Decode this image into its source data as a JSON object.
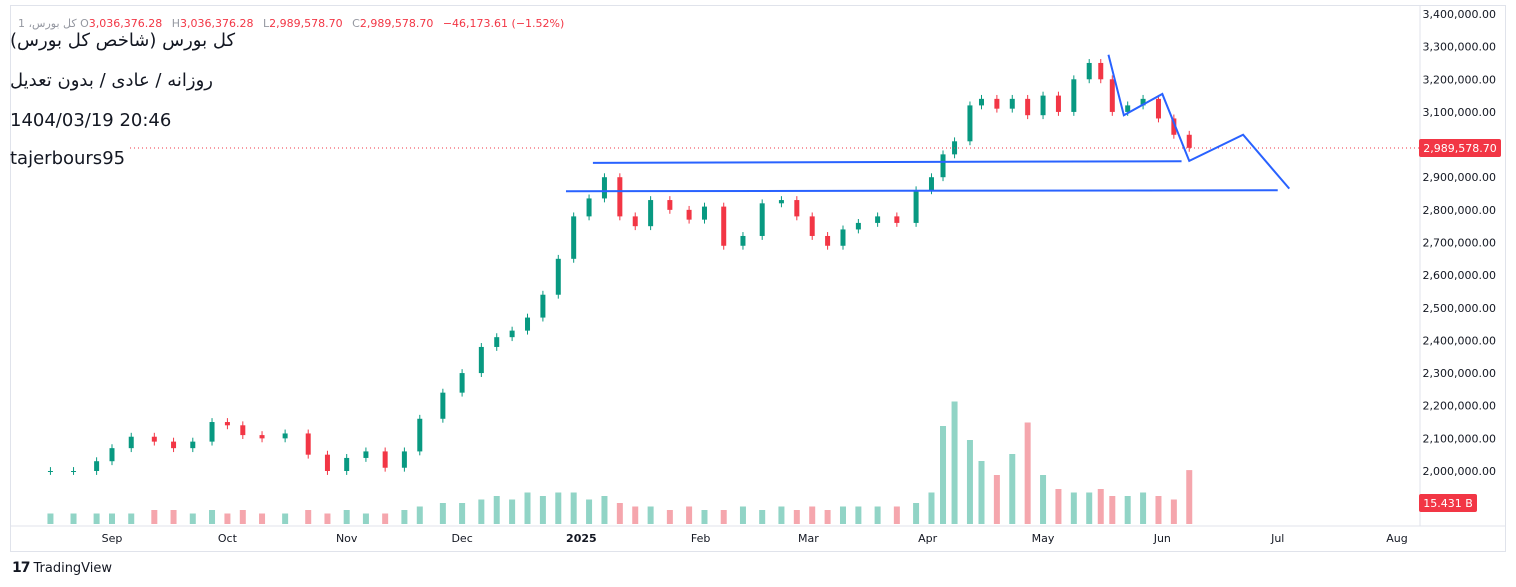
{
  "header": {
    "symbol_title": "کل بورس (شاخص کل بورس)",
    "ohlc_prefix": "1 ،کل بورس",
    "open_label": "O",
    "open": "3,036,376.28",
    "high_label": "H",
    "high": "3,036,376.28",
    "low_label": "L",
    "low": "2,989,578.70",
    "close_label": "C",
    "close": "2,989,578.70",
    "change": "−46,173.61 (−1.52%)"
  },
  "notes": {
    "line1": "روزانه / عادی / بدون تعدیل",
    "line2": "1404/03/19 20:46",
    "line3": "tajerbours95"
  },
  "footer": {
    "brand": "TradingView",
    "logo": "17"
  },
  "chart_data": {
    "type": "candlestick",
    "colors": {
      "up": "#089981",
      "down": "#f23645",
      "vol_up": "#91d4c6",
      "vol_down": "#f5a6ad",
      "drawing": "#2962ff",
      "label_bg": "#f23645"
    },
    "ylim": [
      1950000,
      3420000
    ],
    "y_ticks": [
      "3,400,000.00",
      "3,300,000.00",
      "3,200,000.00",
      "3,100,000.00",
      "3,000,000.00",
      "2,900,000.00",
      "2,800,000.00",
      "2,700,000.00",
      "2,600,000.00",
      "2,500,000.00",
      "2,400,000.00",
      "2,300,000.00",
      "2,200,000.00",
      "2,100,000.00",
      "2,000,000.00"
    ],
    "y_tick_values": [
      3400000,
      3300000,
      3200000,
      3100000,
      3000000,
      2900000,
      2800000,
      2700000,
      2600000,
      2500000,
      2400000,
      2300000,
      2200000,
      2100000,
      2000000
    ],
    "x_ticks": [
      "Sep",
      "Oct",
      "Nov",
      "Dec",
      "2025",
      "Feb",
      "Mar",
      "Apr",
      "May",
      "Jun",
      "Jul",
      "Aug"
    ],
    "x_tick_dates": [
      "2024-09-01",
      "2024-10-01",
      "2024-11-01",
      "2024-12-01",
      "2025-01-01",
      "2025-02-01",
      "2025-03-01",
      "2025-04-01",
      "2025-05-01",
      "2025-06-01",
      "2025-07-01",
      "2025-08-01"
    ],
    "last_price_label": "2,989,578.70",
    "last_price": 2989578.7,
    "volume_label": "15.431 B",
    "close_series": {
      "dates": [
        "2024-08-16",
        "2024-08-22",
        "2024-08-28",
        "2024-09-01",
        "2024-09-06",
        "2024-09-12",
        "2024-09-17",
        "2024-09-22",
        "2024-09-27",
        "2024-10-01",
        "2024-10-05",
        "2024-10-10",
        "2024-10-16",
        "2024-10-22",
        "2024-10-27",
        "2024-11-01",
        "2024-11-06",
        "2024-11-11",
        "2024-11-16",
        "2024-11-20",
        "2024-11-26",
        "2024-12-01",
        "2024-12-06",
        "2024-12-10",
        "2024-12-14",
        "2024-12-18",
        "2024-12-22",
        "2024-12-26",
        "2024-12-30",
        "2025-01-03",
        "2025-01-07",
        "2025-01-11",
        "2025-01-15",
        "2025-01-19",
        "2025-01-24",
        "2025-01-29",
        "2025-02-02",
        "2025-02-07",
        "2025-02-12",
        "2025-02-17",
        "2025-02-22",
        "2025-02-26",
        "2025-03-02",
        "2025-03-06",
        "2025-03-10",
        "2025-03-14",
        "2025-03-19",
        "2025-03-24",
        "2025-03-29",
        "2025-04-02",
        "2025-04-05",
        "2025-04-08",
        "2025-04-12",
        "2025-04-15",
        "2025-04-19",
        "2025-04-23",
        "2025-04-27",
        "2025-05-01",
        "2025-05-05",
        "2025-05-09",
        "2025-05-13",
        "2025-05-16",
        "2025-05-19",
        "2025-05-23",
        "2025-05-27",
        "2025-05-31",
        "2025-06-04",
        "2025-06-08"
      ],
      "values": [
        2000000,
        2000000,
        2030000,
        2070000,
        2105000,
        2090000,
        2070000,
        2090000,
        2150000,
        2140000,
        2110000,
        2100000,
        2115000,
        2050000,
        2000000,
        2040000,
        2060000,
        2010000,
        2060000,
        2160000,
        2240000,
        2300000,
        2380000,
        2410000,
        2430000,
        2470000,
        2540000,
        2650000,
        2780000,
        2835000,
        2900000,
        2780000,
        2750000,
        2830000,
        2800000,
        2770000,
        2810000,
        2690000,
        2720000,
        2820000,
        2830000,
        2780000,
        2720000,
        2690000,
        2740000,
        2760000,
        2780000,
        2760000,
        2860000,
        2900000,
        2970000,
        3010000,
        3120000,
        3140000,
        3110000,
        3140000,
        3090000,
        3150000,
        3100000,
        3200000,
        3250000,
        3200000,
        3100000,
        3120000,
        3140000,
        3080000,
        3030000,
        2990000
      ]
    },
    "volume_series_billions": [
      3,
      3,
      3,
      3,
      3,
      4,
      4,
      3,
      4,
      3,
      4,
      3,
      3,
      4,
      3,
      4,
      3,
      3,
      4,
      5,
      6,
      6,
      7,
      8,
      7,
      9,
      8,
      9,
      9,
      7,
      8,
      6,
      5,
      5,
      4,
      5,
      4,
      4,
      5,
      4,
      5,
      4,
      5,
      4,
      5,
      5,
      5,
      5,
      6,
      9,
      28,
      35,
      24,
      18,
      14,
      20,
      29,
      14,
      10,
      9,
      9,
      10,
      8,
      8,
      9,
      8,
      7,
      15.4
    ],
    "drawings": {
      "resistance_upper": {
        "from": [
          "2025-01-04",
          2944000
        ],
        "to": [
          "2025-06-06",
          2949000
        ]
      },
      "resistance_lower": {
        "from": [
          "2024-12-28",
          2857000
        ],
        "to": [
          "2025-07-01",
          2860000
        ]
      },
      "projection": [
        [
          "2025-05-18",
          3275000
        ],
        [
          "2025-05-22",
          3090000
        ],
        [
          "2025-06-01",
          3155000
        ],
        [
          "2025-06-08",
          2950000
        ],
        [
          "2025-06-22",
          3030000
        ],
        [
          "2025-07-04",
          2865000
        ]
      ]
    }
  }
}
